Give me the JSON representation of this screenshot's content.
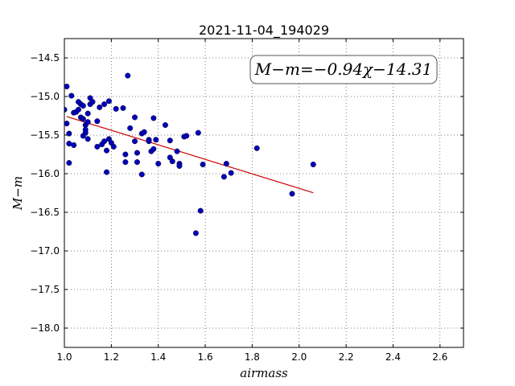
{
  "chart_data": {
    "type": "scatter",
    "title": "2021-11-04_194029",
    "xlabel": "airmass",
    "ylabel": "M−m",
    "xlim": [
      1.0,
      2.7
    ],
    "ylim": [
      -18.25,
      -14.25
    ],
    "y_inverted": true,
    "x_ticks": [
      1.0,
      1.2,
      1.4,
      1.6,
      1.8,
      2.0,
      2.2,
      2.4,
      2.6
    ],
    "x_tick_labels": [
      "1.0",
      "1.2",
      "1.4",
      "1.6",
      "1.8",
      "2.0",
      "2.2",
      "2.4",
      "2.6"
    ],
    "y_ticks": [
      -14.5,
      -15.0,
      -15.5,
      -16.0,
      -16.5,
      -17.0,
      -17.5,
      -18.0
    ],
    "y_tick_labels": [
      "−14.5",
      "−15.0",
      "−15.5",
      "−16.0",
      "−16.5",
      "−17.0",
      "−17.5",
      "−18.0"
    ],
    "grid": true,
    "annotation": "M−m=−0.94χ−14.31",
    "annotation_position": "top-right",
    "fit": {
      "slope": -0.94,
      "intercept": -14.31,
      "x_range": [
        1.01,
        2.06
      ],
      "color": "#cc0000"
    },
    "marker_color": "#0000bb",
    "points": [
      [
        1.0,
        -15.17
      ],
      [
        1.01,
        -14.87
      ],
      [
        1.01,
        -15.35
      ],
      [
        1.02,
        -15.48
      ],
      [
        1.02,
        -15.61
      ],
      [
        1.02,
        -15.86
      ],
      [
        1.03,
        -14.99
      ],
      [
        1.04,
        -15.21
      ],
      [
        1.04,
        -15.63
      ],
      [
        1.05,
        -15.2
      ],
      [
        1.06,
        -15.17
      ],
      [
        1.06,
        -15.07
      ],
      [
        1.07,
        -15.1
      ],
      [
        1.07,
        -15.27
      ],
      [
        1.08,
        -15.12
      ],
      [
        1.08,
        -15.29
      ],
      [
        1.08,
        -15.51
      ],
      [
        1.09,
        -15.37
      ],
      [
        1.09,
        -15.43
      ],
      [
        1.09,
        -15.47
      ],
      [
        1.1,
        -15.22
      ],
      [
        1.1,
        -15.33
      ],
      [
        1.1,
        -15.55
      ],
      [
        1.11,
        -15.02
      ],
      [
        1.11,
        -15.1
      ],
      [
        1.12,
        -15.07
      ],
      [
        1.14,
        -15.65
      ],
      [
        1.14,
        -15.32
      ],
      [
        1.15,
        -15.14
      ],
      [
        1.16,
        -15.62
      ],
      [
        1.17,
        -15.1
      ],
      [
        1.17,
        -15.58
      ],
      [
        1.18,
        -15.7
      ],
      [
        1.18,
        -15.98
      ],
      [
        1.19,
        -15.55
      ],
      [
        1.19,
        -15.06
      ],
      [
        1.2,
        -15.6
      ],
      [
        1.21,
        -15.65
      ],
      [
        1.22,
        -15.16
      ],
      [
        1.25,
        -15.15
      ],
      [
        1.26,
        -15.75
      ],
      [
        1.26,
        -15.85
      ],
      [
        1.27,
        -14.73
      ],
      [
        1.28,
        -15.41
      ],
      [
        1.3,
        -15.27
      ],
      [
        1.3,
        -15.58
      ],
      [
        1.31,
        -15.73
      ],
      [
        1.31,
        -15.85
      ],
      [
        1.33,
        -16.01
      ],
      [
        1.33,
        -15.48
      ],
      [
        1.34,
        -15.46
      ],
      [
        1.36,
        -15.56
      ],
      [
        1.36,
        -15.58
      ],
      [
        1.37,
        -15.71
      ],
      [
        1.38,
        -15.28
      ],
      [
        1.38,
        -15.68
      ],
      [
        1.39,
        -15.56
      ],
      [
        1.4,
        -15.87
      ],
      [
        1.43,
        -15.37
      ],
      [
        1.45,
        -15.57
      ],
      [
        1.45,
        -15.79
      ],
      [
        1.46,
        -15.84
      ],
      [
        1.48,
        -15.71
      ],
      [
        1.49,
        -15.87
      ],
      [
        1.49,
        -15.9
      ],
      [
        1.51,
        -15.52
      ],
      [
        1.52,
        -15.51
      ],
      [
        1.56,
        -16.77
      ],
      [
        1.57,
        -15.47
      ],
      [
        1.58,
        -16.48
      ],
      [
        1.59,
        -15.88
      ],
      [
        1.68,
        -16.04
      ],
      [
        1.69,
        -15.87
      ],
      [
        1.71,
        -15.99
      ],
      [
        1.82,
        -15.67
      ],
      [
        1.97,
        -16.26
      ],
      [
        2.06,
        -15.88
      ]
    ]
  }
}
